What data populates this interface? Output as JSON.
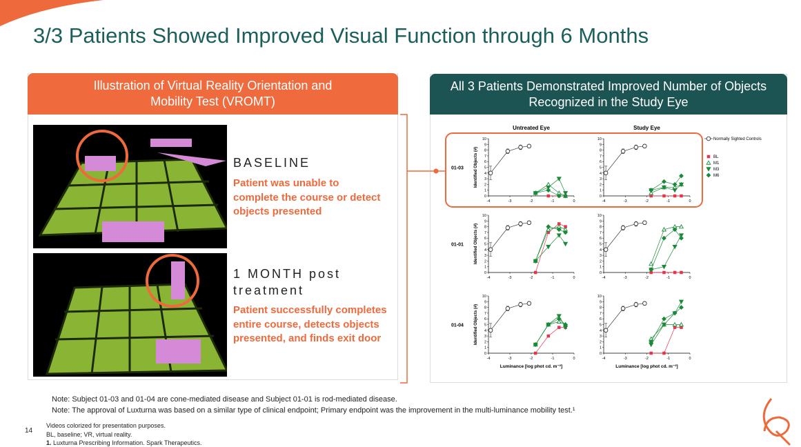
{
  "header": {
    "title": "3/3 Patients Showed Improved Visual Function through 6 Months"
  },
  "left_panel": {
    "title": "Illustration of Virtual Reality Orientation and Mobility Test (VROMT)",
    "baseline": {
      "heading": "BASELINE",
      "text": "Patient was unable to complete the course or detect objects presented"
    },
    "month1": {
      "heading": "1 MONTH post treatment",
      "text": "Patient successfully completes entire course, detects objects presented, and finds exit door"
    }
  },
  "right_panel": {
    "title": "All 3 Patients Demonstrated Improved Number of Objects Recognized in the Study Eye"
  },
  "charts": {
    "columns": [
      "Untreated Eye",
      "Study Eye"
    ],
    "y_label": "Identified Objects (#)",
    "x_label": "Luminance [log phot cd. m⁻²]",
    "xlim": [
      -4,
      0
    ],
    "xticks": [
      -4,
      -3,
      -2,
      -1,
      0
    ],
    "ylim": [
      0,
      10
    ],
    "yticks": [
      0,
      1,
      2,
      3,
      4,
      5,
      6,
      7,
      8,
      9,
      10
    ],
    "legend": [
      {
        "name": "Normally Sighted Controls",
        "color": "#333333",
        "marker": "circle"
      },
      {
        "name": "BL",
        "color": "#e8344a",
        "marker": "square"
      },
      {
        "name": "M1",
        "color": "#1a8a3a",
        "marker": "triangle-up"
      },
      {
        "name": "M3",
        "color": "#1a8a3a",
        "marker": "triangle-down"
      },
      {
        "name": "M6",
        "color": "#1a8a3a",
        "marker": "diamond"
      }
    ],
    "rows": [
      {
        "label": "01-03",
        "panels": [
          {
            "control": {
              "x": [
                -3.9,
                -3.1,
                -2.5,
                -2.1
              ],
              "values": [
                4,
                7.8,
                8.5,
                8.7
              ],
              "errors": [
                1.2,
                0.4,
                0.4,
                0.3
              ]
            },
            "series": [
              {
                "x": [
                  -1.8,
                  -1.2,
                  -0.7,
                  -0.4
                ],
                "values": [
                  null,
                  0,
                  0,
                  0
                ]
              },
              {
                "x": [
                  -1.8,
                  -1.2,
                  -0.7,
                  -0.4
                ],
                "values": [
                  0.5,
                  2,
                  0.5,
                  0
                ]
              },
              {
                "x": [
                  -1.8,
                  -1.2,
                  -0.7,
                  -0.4
                ],
                "values": [
                  0.5,
                  1.5,
                  3,
                  0.5
                ]
              },
              {
                "x": [
                  -1.8,
                  -1.2,
                  -0.7,
                  -0.4
                ],
                "values": [
                  0.5,
                  1,
                  0,
                  0
                ]
              }
            ]
          },
          {
            "control": {
              "x": [
                -3.9,
                -3.1,
                -2.5,
                -2.1
              ],
              "values": [
                4,
                7.8,
                8.5,
                8.7
              ],
              "errors": [
                1.2,
                0.4,
                0.4,
                0.3
              ]
            },
            "series": [
              {
                "x": [
                  -1.8,
                  -1.2,
                  -0.7,
                  -0.4
                ],
                "values": [
                  0,
                  0,
                  0,
                  0
                ]
              },
              {
                "x": [
                  -1.8,
                  -1.2,
                  -0.7,
                  -0.4
                ],
                "values": [
                  0.5,
                  1.5,
                  1.5,
                  2
                ]
              },
              {
                "x": [
                  -1.8,
                  -1.2,
                  -0.7,
                  -0.4
                ],
                "values": [
                  1,
                  1.5,
                  1,
                  2
                ]
              },
              {
                "x": [
                  -1.8,
                  -1.2,
                  -0.7,
                  -0.4
                ],
                "values": [
                  1,
                  2.5,
                  2,
                  3.5
                ]
              }
            ]
          }
        ]
      },
      {
        "label": "01-01",
        "panels": [
          {
            "control": {
              "x": [
                -3.9,
                -3.1,
                -2.5,
                -2.1
              ],
              "values": [
                4,
                7.8,
                8.5,
                8.7
              ],
              "errors": [
                1.2,
                0.4,
                0.4,
                0.3
              ]
            },
            "series": [
              {
                "x": [
                  -1.8,
                  -1.2,
                  -0.7,
                  -0.4
                ],
                "values": [
                  0,
                  7,
                  8.5,
                  8
                ]
              },
              {
                "x": [
                  -1.8,
                  -1.2,
                  -0.7,
                  -0.4
                ],
                "values": [
                  2,
                  7.5,
                  8,
                  7.5
                ]
              },
              {
                "x": [
                  -1.8,
                  -1.2,
                  -0.7,
                  -0.4
                ],
                "values": [
                  2,
                  4.5,
                  6.5,
                  5
                ]
              },
              {
                "x": [
                  -1.8,
                  -1.2,
                  -0.7,
                  -0.4
                ],
                "values": [
                  2,
                  8,
                  7.5,
                  7
                ]
              }
            ]
          },
          {
            "control": {
              "x": [
                -3.9,
                -3.1,
                -2.5,
                -2.1
              ],
              "values": [
                4,
                7.8,
                8.5,
                8.7
              ],
              "errors": [
                1.2,
                0.4,
                0.4,
                0.3
              ]
            },
            "series": [
              {
                "x": [
                  -1.8,
                  -1.2,
                  -0.7,
                  -0.4
                ],
                "values": [
                  0,
                  0,
                  0,
                  0
                ]
              },
              {
                "x": [
                  -1.8,
                  -1.2,
                  -0.7,
                  -0.4
                ],
                "values": [
                  1.5,
                  7.5,
                  8,
                  8
                ]
              },
              {
                "x": [
                  -1.8,
                  -1.2,
                  -0.7,
                  -0.4
                ],
                "values": [
                  0.5,
                  1,
                  4.5,
                  6.5
                ]
              },
              {
                "x": [
                  -1.8,
                  -1.2,
                  -0.7,
                  -0.4
                ],
                "values": [
                  0.5,
                  6,
                  7.5,
                  6
                ]
              }
            ]
          }
        ]
      },
      {
        "label": "01-04",
        "panels": [
          {
            "control": {
              "x": [
                -3.9,
                -3.1,
                -2.5,
                -2.1
              ],
              "values": [
                4,
                7.8,
                8.5,
                8.7
              ],
              "errors": [
                1.2,
                0.4,
                0.4,
                0.3
              ]
            },
            "series": [
              {
                "x": [
                  -1.8,
                  -1.2,
                  -0.7,
                  -0.4
                ],
                "values": [
                  0,
                  3,
                  4.5,
                  4.5
                ]
              },
              {
                "x": [
                  -1.8,
                  -1.2,
                  -0.7,
                  -0.4
                ],
                "values": [
                  1.5,
                  5,
                  5.5,
                  5
                ]
              },
              {
                "x": [
                  -1.8,
                  -1.2,
                  -0.7,
                  -0.4
                ],
                "values": [
                  1.5,
                  5,
                  6.5,
                  4.5
                ]
              },
              {
                "x": [
                  -1.8,
                  -1.2,
                  -0.7,
                  -0.4
                ],
                "values": [
                  1.5,
                  5,
                  6,
                  5
                ]
              }
            ]
          },
          {
            "control": {
              "x": [
                -3.9,
                -3.1,
                -2.5,
                -2.1
              ],
              "values": [
                4,
                7.8,
                8.5,
                8.7
              ],
              "errors": [
                1.2,
                0.4,
                0.4,
                0.3
              ]
            },
            "series": [
              {
                "x": [
                  -1.8,
                  -1.2,
                  -0.7,
                  -0.4
                ],
                "values": [
                  0,
                  0,
                  4.5,
                  4.5
                ]
              },
              {
                "x": [
                  -1.8,
                  -1.2,
                  -0.7,
                  -0.4
                ],
                "values": [
                  2.5,
                  5,
                  5,
                  5
                ]
              },
              {
                "x": [
                  -1.8,
                  -1.2,
                  -0.7,
                  -0.4
                ],
                "values": [
                  1.5,
                  5,
                  7,
                  9
                ]
              },
              {
                "x": [
                  -1.8,
                  -1.2,
                  -0.7,
                  -0.4
                ],
                "values": [
                  2,
                  6,
                  7,
                  8
                ]
              }
            ]
          }
        ]
      }
    ]
  },
  "notes": [
    "Note: Subject 01-03 and 01-04 are cone-mediated disease and Subject 01-01 is rod-mediated disease.",
    "Note: The approval of Luxturna was based on a similar type of clinical endpoint; Primary endpoint was the improvement in the multi-luminance mobility test.¹"
  ],
  "footer": {
    "page": "14",
    "lines": [
      "Videos colorized for presentation purposes.",
      "BL, baseline; VR, virtual reality."
    ],
    "ref_number": "1.",
    "ref_text": "Luxturna Prescribing Information. Spark Therapeutics."
  }
}
